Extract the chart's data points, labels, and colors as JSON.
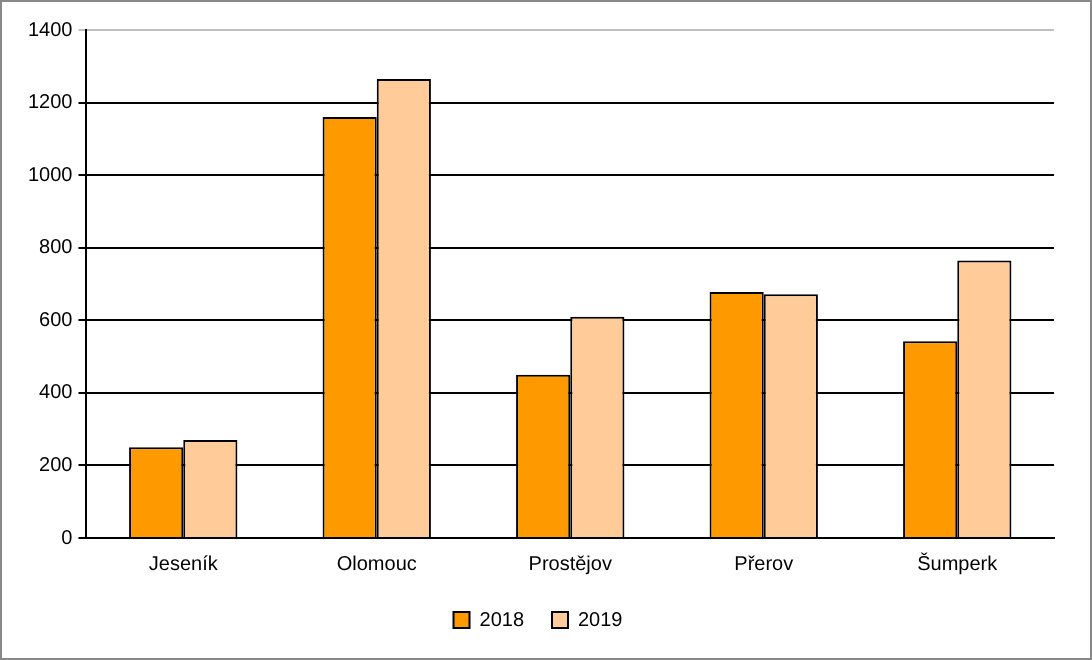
{
  "chart_data": {
    "type": "bar",
    "categories": [
      "Jeseník",
      "Olomouc",
      "Prostějov",
      "Přerov",
      "Šumperk"
    ],
    "series": [
      {
        "name": "2018",
        "color": "#ff9900",
        "values": [
          250,
          1160,
          450,
          678,
          542
        ]
      },
      {
        "name": "2019",
        "color": "#ffcc99",
        "values": [
          270,
          1265,
          610,
          672,
          765
        ]
      }
    ],
    "ylim": [
      0,
      1400
    ],
    "yticks": [
      0,
      200,
      400,
      600,
      800,
      1000,
      1200,
      1400
    ],
    "grid": "y",
    "legend": "bottom"
  }
}
